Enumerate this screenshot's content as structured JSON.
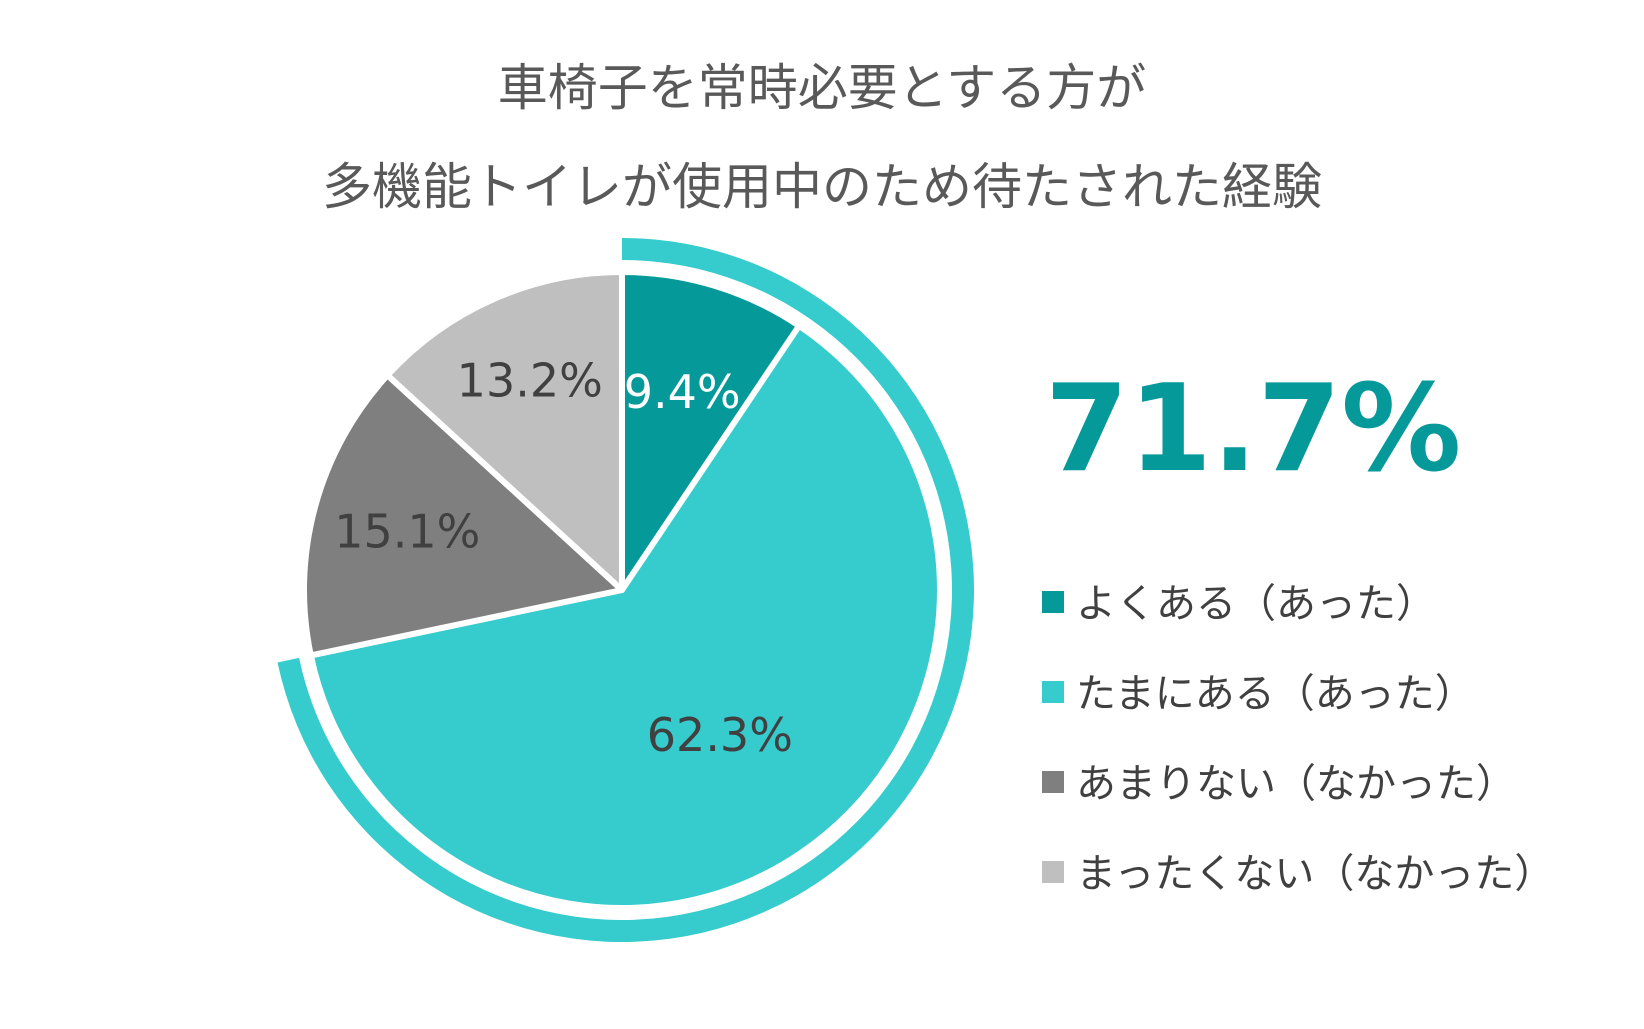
{
  "chart_data": {
    "type": "pie",
    "title": [
      "車椅子を常時必要とする方が",
      "多機能トイレが使用中のため待たされた経験"
    ],
    "categories": [
      "よくある（あった）",
      "たまにある（あった）",
      "あまりない（なかった）",
      "まったくない（なかった）"
    ],
    "values": [
      9.4,
      62.3,
      15.1,
      13.2
    ],
    "value_labels": [
      "9.4%",
      "62.3%",
      "15.1%",
      "13.2%"
    ],
    "colors": [
      "#05999A",
      "#36CBCC",
      "#7F7F7F",
      "#BFBFBF"
    ],
    "label_colors": [
      "#FFFFFF",
      "#404040",
      "#404040",
      "#404040"
    ],
    "highlight": {
      "label": "71.7%",
      "categories_included": [
        0,
        1
      ],
      "color": "#05999A",
      "ring_color": "#36CBCC"
    },
    "legend_position": "right"
  }
}
